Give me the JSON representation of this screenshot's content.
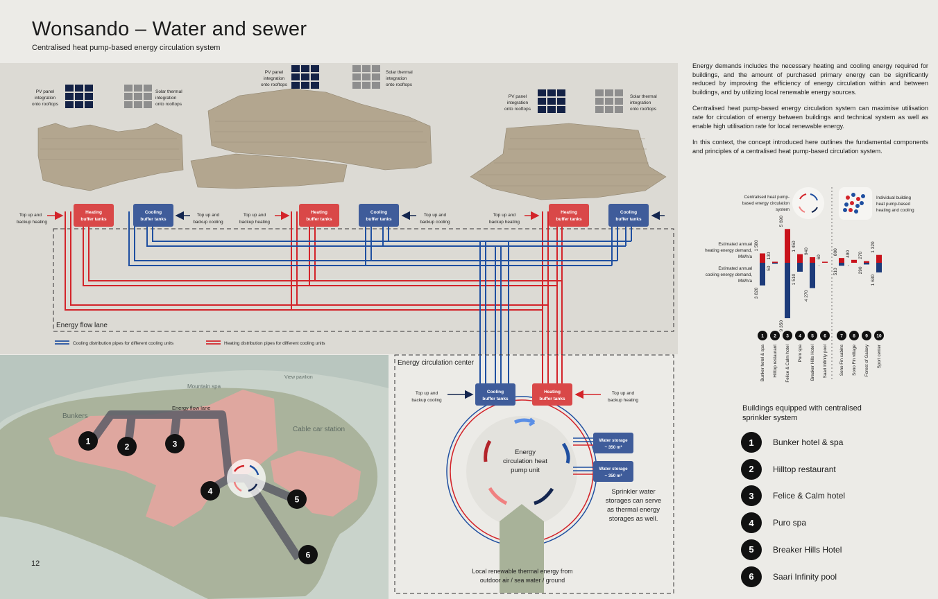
{
  "header": {
    "title": "Wonsando – Water and sewer",
    "subtitle": "Centralised heat pump-based energy circulation system"
  },
  "page_number": "12",
  "colors": {
    "heating": "#d3242a",
    "cooling": "#1f4fa0",
    "heating_box": "#d94848",
    "cooling_box": "#3f5c9a",
    "map_zone": "#e9a4a0"
  },
  "top_diagram": {
    "pv_label": [
      "PV panel",
      "integration",
      "onto rooftops"
    ],
    "solar_label": [
      "Solar thermal",
      "integration",
      "onto rooftops"
    ],
    "heating_tank": [
      "Heating",
      "buffer tanks"
    ],
    "cooling_tank": [
      "Cooling",
      "buffer tanks"
    ],
    "topup_heating": [
      "Top up and",
      "backup heating"
    ],
    "topup_cooling": [
      "Top up and",
      "backup cooling"
    ],
    "energy_flow_lane": "Energy flow lane",
    "legend_cooling": "Cooling distribution pipes for different cooling units",
    "legend_heating": "Heating distribution pipes for different cooling units"
  },
  "map": {
    "energy_flow_lane": "Energy flow lane",
    "place_labels": [
      "Bunkers",
      "Mountain spa",
      "View pavilion",
      "Cable car station"
    ],
    "markers": [
      "1",
      "2",
      "3",
      "4",
      "5",
      "6"
    ]
  },
  "energy_center": {
    "title": "Energy circulation center",
    "topup_cooling": [
      "Top up and",
      "backup cooling"
    ],
    "topup_heating": [
      "Top up and",
      "backup heating"
    ],
    "cooling_tank": [
      "Cooling",
      "buffer tanks"
    ],
    "heating_tank": [
      "Heating",
      "buffer tanks"
    ],
    "pump_label": [
      "Energy",
      "circulation heat",
      "pump unit"
    ],
    "water_storage": [
      "Water storage",
      "~ 350 m³"
    ],
    "sprinkler_note": [
      "Sprinkler water",
      "storages can serve",
      "as thermal energy",
      "storages as well."
    ],
    "renewable_label": [
      "Local renewable thermal energy from",
      "outdoor air / sea water / ground"
    ]
  },
  "right_text": {
    "paragraphs": [
      "Energy demands includes the necessary heating and cooling energy required for buildings, and the amount of purchased primary energy can be significantly reduced by improving the efficiency of energy circulation within and between buildings, and by utilizing local renewable energy sources.",
      "Centralised heat pump-based energy circulation system can maximise utilisation rate for circulation of energy between buildings and technical system as well as enable high utilisation rate for local renewable energy.",
      "In this context, the concept introduced here outlines the fundamental components and principles of a centralised heat pump-based circulation system."
    ]
  },
  "chart_data": {
    "type": "bar",
    "legend_centralised": [
      "Centralised heat pump-",
      "based energy circulation",
      "system"
    ],
    "legend_individual": [
      "Individual building",
      "heat pump-based",
      "heating and cooling"
    ],
    "heating_label": [
      "Estimated annual",
      "heating energy demand,",
      "MWh/a"
    ],
    "cooling_label": [
      "Estimated annual",
      "cooling energy demand,",
      "MWh/a"
    ],
    "categories": [
      "Bunker hotel & spa",
      "Hilltop restaurant",
      "Felice & Calm hotel",
      "Puro spa",
      "Breaker Hills Hotel",
      "Saari Infinity pool",
      "Sono Fin cabins",
      "Sono Fin village",
      "Forest of Galaxy",
      "Sport center"
    ],
    "numbers": [
      "1",
      "2",
      "3",
      "4",
      "5",
      "6",
      "7",
      "8",
      "9",
      "10"
    ],
    "series": [
      {
        "name": "heating",
        "values": [
          1580,
          130,
          5690,
          1450,
          940,
          60,
          800,
          490,
          270,
          1320
        ],
        "labels": [
          "1 580",
          "130",
          "5 690",
          "1 450",
          "940",
          "60",
          "800",
          "490",
          "270",
          "1 320"
        ]
      },
      {
        "name": "cooling",
        "values": [
          3820,
          50,
          9350,
          1510,
          4270,
          0,
          510,
          0,
          290,
          1630
        ],
        "labels": [
          "3 820",
          "50",
          "9 350",
          "1 510",
          "4 270",
          "-",
          "510",
          "-",
          "290",
          "1 630"
        ]
      }
    ]
  },
  "sprinkler_legend": {
    "title": "Buildings equipped with centralised sprinkler system",
    "items": [
      {
        "num": "1",
        "name": "Bunker hotel & spa"
      },
      {
        "num": "2",
        "name": "Hilltop restaurant"
      },
      {
        "num": "3",
        "name": "Felice & Calm hotel"
      },
      {
        "num": "4",
        "name": "Puro spa"
      },
      {
        "num": "5",
        "name": "Breaker Hills Hotel"
      },
      {
        "num": "6",
        "name": "Saari Infinity pool"
      }
    ]
  }
}
